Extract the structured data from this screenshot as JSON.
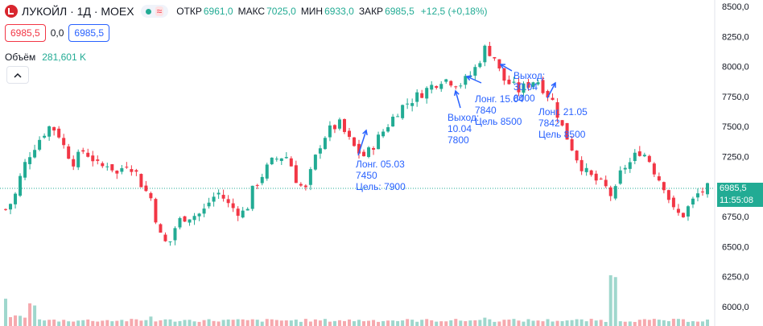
{
  "header": {
    "title": "ЛУКОЙЛ · 1Д · MOEX",
    "logo_icon": "lukoil-logo-icon",
    "market_status_icon": "market-open-dot-icon",
    "wave_icon": "wave-icon",
    "ohlc": {
      "open_label": "ОТКР",
      "open": "6961,0",
      "high_label": "МАКС",
      "high": "7025,0",
      "low_label": "МИН",
      "low": "6933,0",
      "close_label": "ЗАКР",
      "close": "6985,5",
      "change": "+12,5 (+0,18%)"
    }
  },
  "trade_row": {
    "sell_price": "6985,5",
    "spread": "0,0",
    "buy_price": "6985,5"
  },
  "volume": {
    "label": "Объём",
    "value": "281,601 K"
  },
  "collapse_icon": "chevron-up-icon",
  "price_tag": {
    "price": "6985,5",
    "time": "11:55:08"
  },
  "colors": {
    "up": "#22ab94",
    "down": "#f23645",
    "annotation": "#2962ff",
    "vol_up": "#9fd7cd",
    "vol_down": "#f6a9ae"
  },
  "chart_data": {
    "type": "candlestick",
    "y_axis": {
      "ticks": [
        "8500,0",
        "8250,0",
        "8000,0",
        "7750,0",
        "7500,0",
        "7250,0",
        "7000,0",
        "6750,0",
        "6500,0",
        "6250,0",
        "6000,0"
      ],
      "ylim": [
        5900,
        8520
      ]
    },
    "current_price": 6985.5,
    "close_path": [
      6810,
      6900,
      7150,
      7300,
      7400,
      7500,
      7470,
      7300,
      7200,
      7300,
      7250,
      7150,
      7200,
      7100,
      7200,
      7150,
      7000,
      6900,
      6600,
      6500,
      6700,
      6750,
      6760,
      6780,
      6900,
      6950,
      6850,
      6800,
      6780,
      7000,
      7100,
      7200,
      7250,
      7250,
      7050,
      6960,
      7200,
      7400,
      7480,
      7520,
      7400,
      7300,
      7250,
      7350,
      7450,
      7550,
      7650,
      7700,
      7750,
      7800,
      7850,
      7900,
      7880,
      7850,
      7900,
      8000,
      8150,
      8100,
      7900,
      7850,
      7800,
      7850,
      7900,
      7800,
      7700,
      7500,
      7350,
      7200,
      7100,
      7050,
      7000,
      6900,
      7150,
      7200,
      7300,
      7250,
      7100,
      7000,
      6800,
      6750,
      6850,
      6950,
      6985.5
    ],
    "volume_profile": [
      6,
      2,
      2,
      5,
      1,
      1,
      1,
      1,
      1,
      1,
      1,
      1,
      1,
      1,
      1,
      1,
      1,
      2,
      1,
      1,
      1,
      1,
      1,
      1,
      1,
      1,
      1,
      1,
      1,
      1,
      1,
      1,
      1,
      1,
      1,
      1,
      1,
      1,
      1,
      1,
      1,
      1,
      1,
      1,
      1,
      1,
      1,
      1,
      1,
      1,
      1,
      1,
      1,
      1,
      1,
      1,
      2,
      1,
      1,
      1,
      1,
      1,
      1,
      1,
      1,
      1,
      1,
      1,
      1,
      1,
      1,
      12,
      1,
      1,
      1,
      1,
      1,
      1,
      1,
      1,
      1,
      1,
      1
    ],
    "annotations": [
      {
        "lines": [
          "Лонг. 05.03",
          "7450",
          "Цель: 7900"
        ]
      },
      {
        "lines": [
          "Выход:",
          "10.04",
          "7800"
        ]
      },
      {
        "lines": [
          "Лонг. 15.04",
          "7840",
          "Цель 8500"
        ]
      },
      {
        "lines": [
          "Выход:",
          "30.04",
          "8000"
        ]
      },
      {
        "lines": [
          "Лонг. 21.05",
          "7842",
          "Цель 8500"
        ]
      }
    ]
  }
}
